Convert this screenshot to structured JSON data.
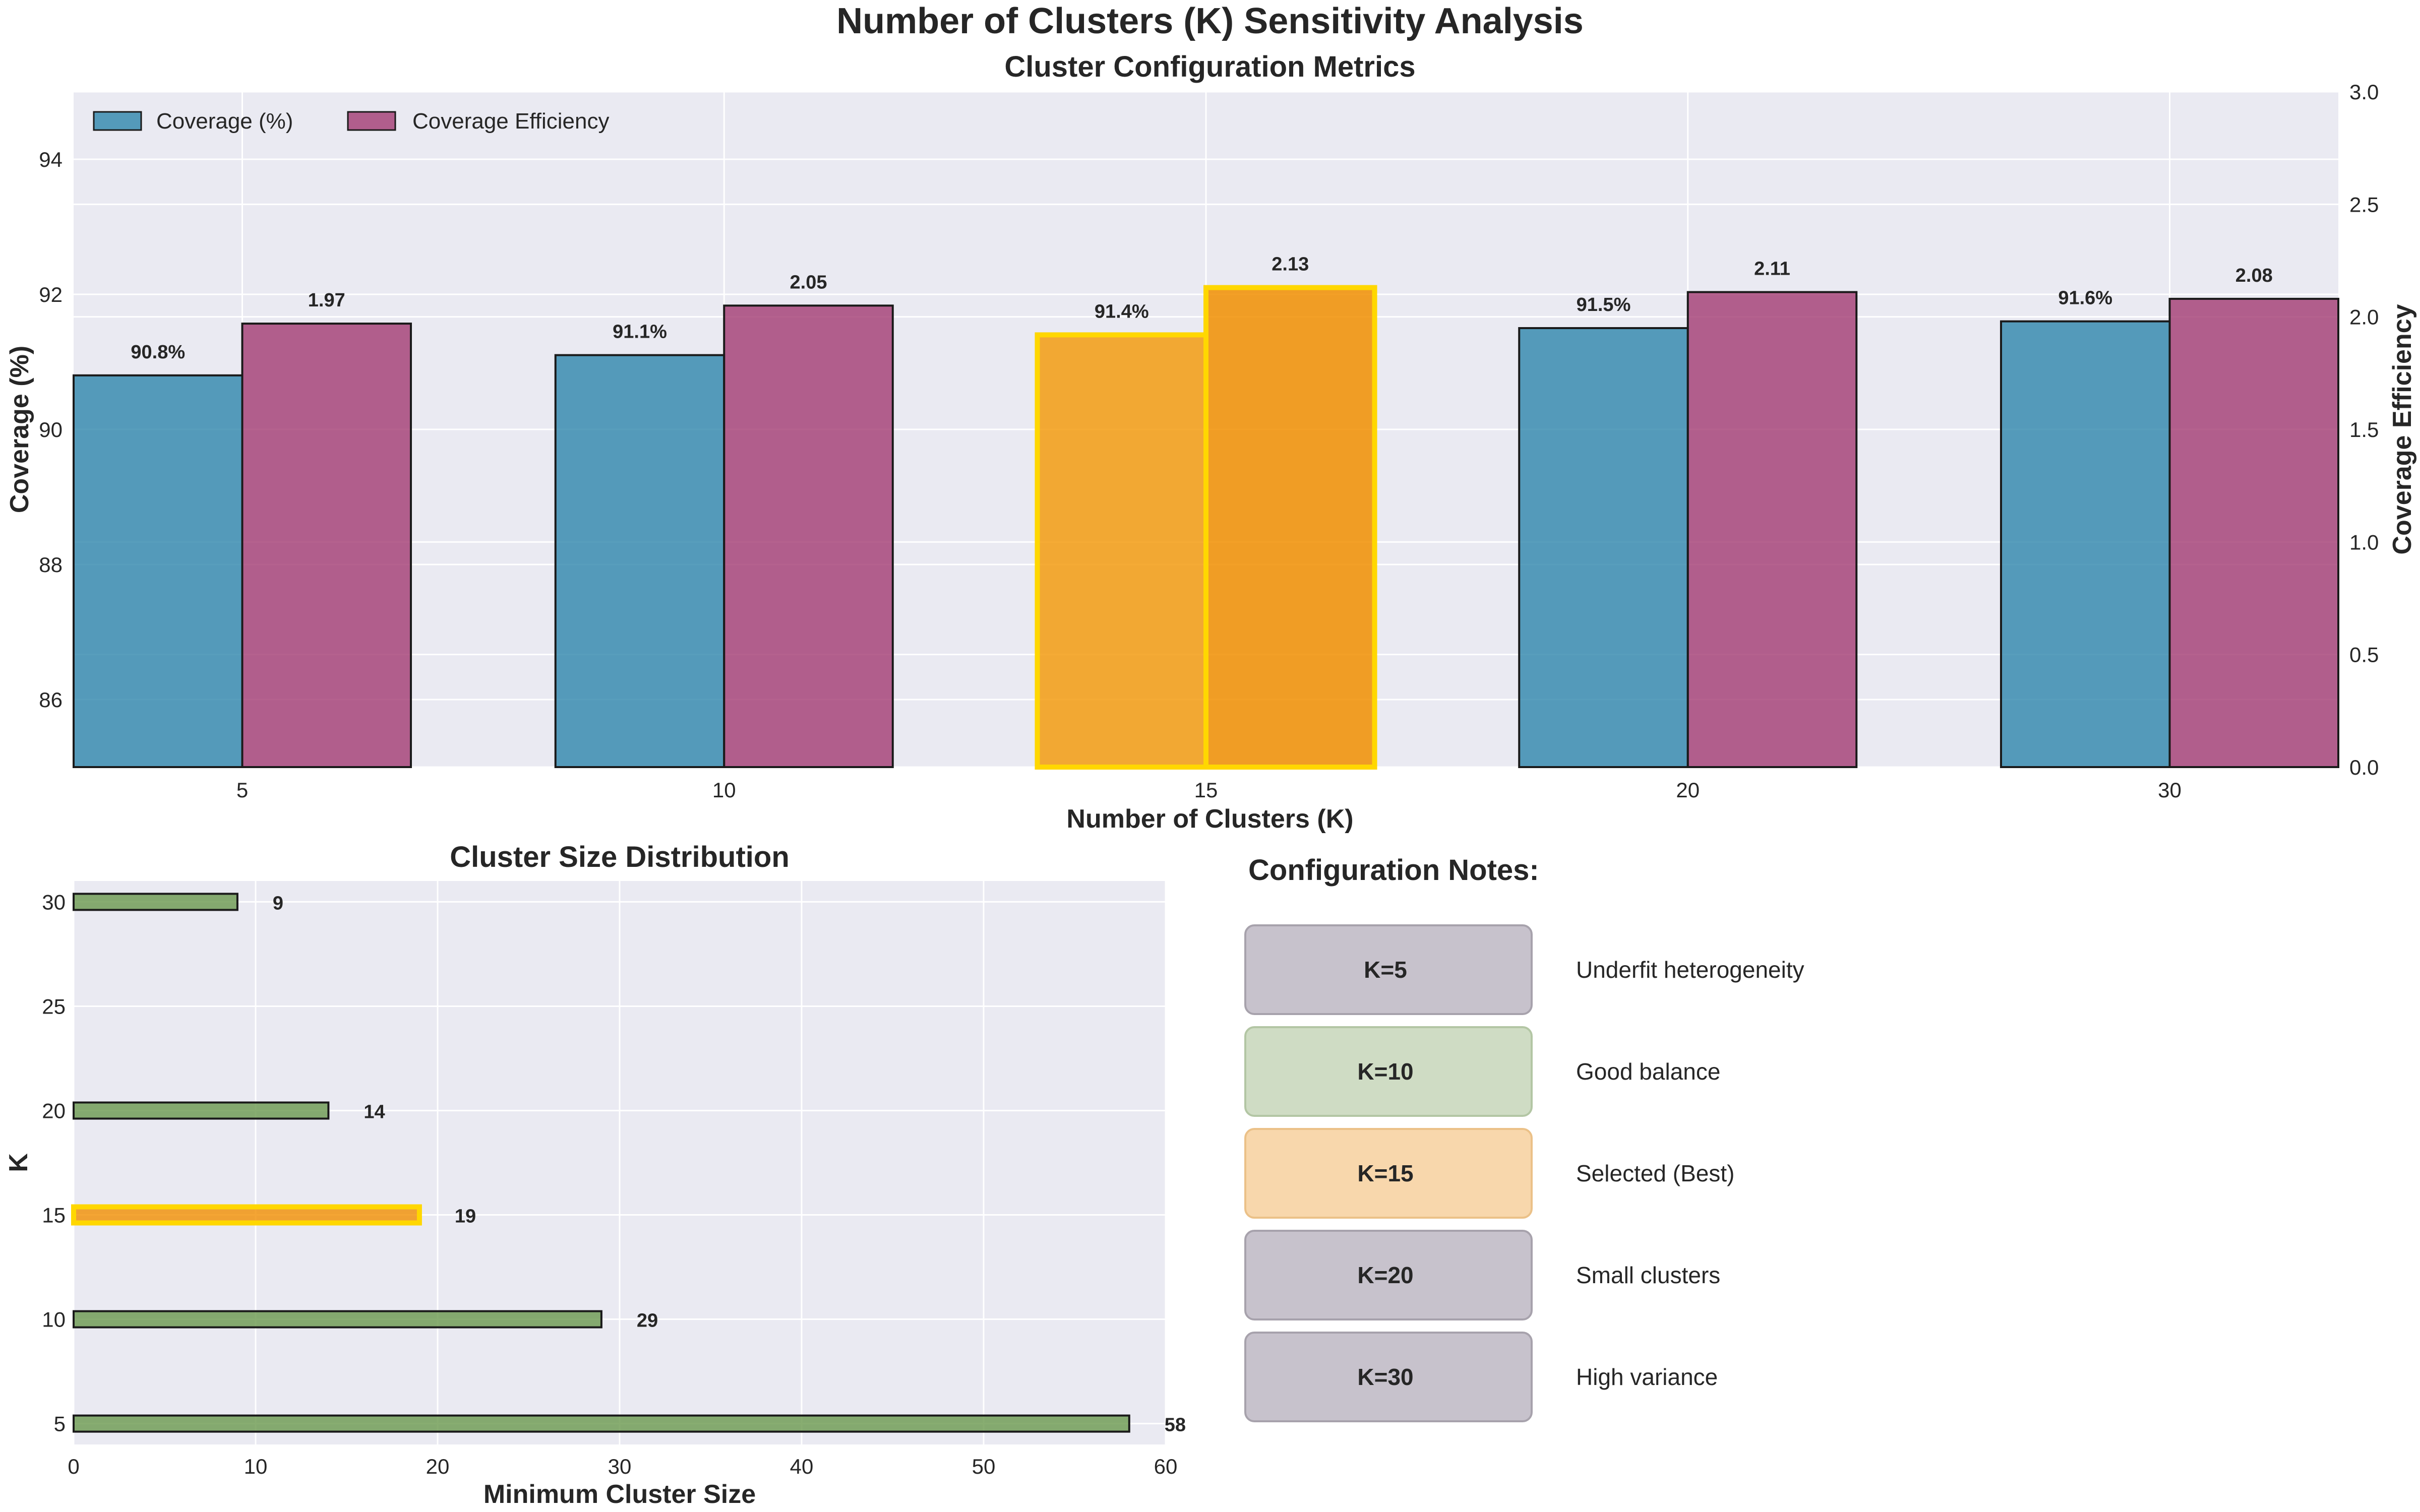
{
  "figure": {
    "title": "Number of Clusters (K) Sensitivity Analysis"
  },
  "chart_data": [
    {
      "type": "bar",
      "title": "Cluster Configuration Metrics",
      "xlabel": "Number of Clusters (K)",
      "ylabel": "Coverage (%)",
      "y2label": "Coverage Efficiency",
      "categories": [
        "5",
        "10",
        "15",
        "20",
        "30"
      ],
      "ylim": [
        85,
        95
      ],
      "y2lim": [
        0.0,
        3.0
      ],
      "yticks": [
        86,
        88,
        90,
        92,
        94
      ],
      "y2ticks": [
        "0.0",
        "0.5",
        "1.0",
        "1.5",
        "2.0",
        "2.5",
        "3.0"
      ],
      "grid": true,
      "legend_position": "top-left",
      "highlight_category": "15",
      "series": [
        {
          "name": "Coverage (%)",
          "axis": "left",
          "color": "#2E86AB",
          "highlight_color": "#F39C12",
          "values": [
            90.8,
            91.1,
            91.4,
            91.5,
            91.6
          ],
          "labels": [
            "90.8%",
            "91.1%",
            "91.4%",
            "91.5%",
            "91.6%"
          ]
        },
        {
          "name": "Coverage Efficiency",
          "axis": "right",
          "color": "#A23B72",
          "highlight_color": "#F18F01",
          "values": [
            1.97,
            2.05,
            2.13,
            2.11,
            2.08
          ],
          "labels": [
            "1.97",
            "2.05",
            "2.13",
            "2.11",
            "2.08"
          ]
        }
      ]
    },
    {
      "type": "bar",
      "orientation": "horizontal",
      "title": "Cluster Size Distribution",
      "xlabel": "Minimum Cluster Size",
      "ylabel": "K",
      "categories": [
        5,
        10,
        15,
        20,
        30
      ],
      "values": [
        58,
        29,
        19,
        14,
        9
      ],
      "labels": [
        "58",
        "29",
        "19",
        "14",
        "9"
      ],
      "xlim": [
        0,
        60
      ],
      "ylim": [
        4,
        31
      ],
      "xticks": [
        "0",
        "10",
        "20",
        "30",
        "40",
        "50",
        "60"
      ],
      "yticks": [
        "5",
        "10",
        "15",
        "20",
        "25",
        "30"
      ],
      "color": "#6A994E",
      "highlight_color": "#F18F01",
      "highlight_edge": "#FFD700",
      "highlight_category": 15,
      "grid": true
    }
  ],
  "notes": {
    "title": "Configuration Notes:",
    "items": [
      {
        "key": "K=5",
        "desc": "Underfit heterogeneity",
        "color": "#C7C2CC",
        "edge": "#A7A2AC"
      },
      {
        "key": "K=10",
        "desc": "Good balance",
        "color": "#CFDCC4",
        "edge": "#B3C6A4"
      },
      {
        "key": "K=15",
        "desc": "Selected (Best)",
        "color": "#F8D7AC",
        "edge": "#EBC188"
      },
      {
        "key": "K=20",
        "desc": "Small clusters",
        "color": "#C7C2CC",
        "edge": "#A7A2AC"
      },
      {
        "key": "K=30",
        "desc": "High variance",
        "color": "#C7C2CC",
        "edge": "#A7A2AC"
      }
    ]
  },
  "theme": {
    "panel_bg": "#EAEAF2",
    "grid": "#FFFFFF",
    "edge": "#1A1A1A",
    "highlight_edge": "#FFD700"
  }
}
